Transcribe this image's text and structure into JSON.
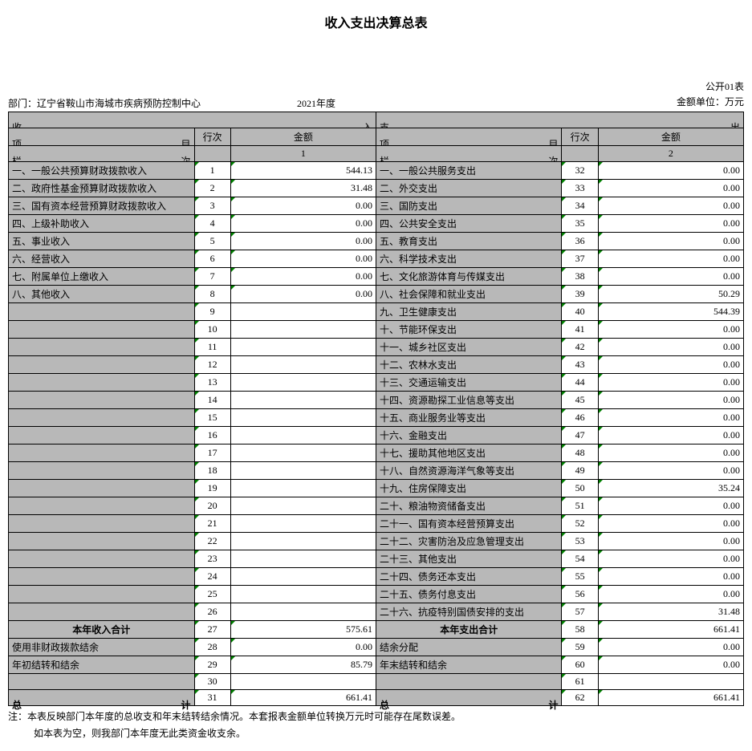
{
  "title": "收入支出决算总表",
  "header": {
    "dept_label": "部门：",
    "dept_name": "辽宁省鞍山市海城市疾病预防控制中心",
    "year": "2021年度",
    "table_no": "公开01表",
    "unit": "金额单位：万元"
  },
  "section_headers": {
    "income_left": "收",
    "income_right": "入",
    "expense_left": "支",
    "expense_right": "出",
    "item_left": "项",
    "item_right": "目",
    "row_label": "行次",
    "amount_label": "金额",
    "col_left": "栏",
    "col_right": "次",
    "col1": "1",
    "col2": "2"
  },
  "income_rows": [
    {
      "label": "一、一般公共预算财政拨款收入",
      "row": "1",
      "amount": "544.13"
    },
    {
      "label": "二、政府性基金预算财政拨款收入",
      "row": "2",
      "amount": "31.48"
    },
    {
      "label": "三、国有资本经营预算财政拨款收入",
      "row": "3",
      "amount": "0.00"
    },
    {
      "label": "四、上级补助收入",
      "row": "4",
      "amount": "0.00"
    },
    {
      "label": "五、事业收入",
      "row": "5",
      "amount": "0.00"
    },
    {
      "label": "六、经营收入",
      "row": "6",
      "amount": "0.00"
    },
    {
      "label": "七、附属单位上缴收入",
      "row": "7",
      "amount": "0.00"
    },
    {
      "label": "八、其他收入",
      "row": "8",
      "amount": "0.00"
    },
    {
      "label": "",
      "row": "9",
      "amount": ""
    },
    {
      "label": "",
      "row": "10",
      "amount": ""
    },
    {
      "label": "",
      "row": "11",
      "amount": ""
    },
    {
      "label": "",
      "row": "12",
      "amount": ""
    },
    {
      "label": "",
      "row": "13",
      "amount": ""
    },
    {
      "label": "",
      "row": "14",
      "amount": ""
    },
    {
      "label": "",
      "row": "15",
      "amount": ""
    },
    {
      "label": "",
      "row": "16",
      "amount": ""
    },
    {
      "label": "",
      "row": "17",
      "amount": ""
    },
    {
      "label": "",
      "row": "18",
      "amount": ""
    },
    {
      "label": "",
      "row": "19",
      "amount": ""
    },
    {
      "label": "",
      "row": "20",
      "amount": ""
    },
    {
      "label": "",
      "row": "21",
      "amount": ""
    },
    {
      "label": "",
      "row": "22",
      "amount": ""
    },
    {
      "label": "",
      "row": "23",
      "amount": ""
    },
    {
      "label": "",
      "row": "24",
      "amount": ""
    },
    {
      "label": "",
      "row": "25",
      "amount": ""
    },
    {
      "label": "",
      "row": "26",
      "amount": ""
    }
  ],
  "expense_rows": [
    {
      "label": "一、一般公共服务支出",
      "row": "32",
      "amount": "0.00"
    },
    {
      "label": "二、外交支出",
      "row": "33",
      "amount": "0.00"
    },
    {
      "label": "三、国防支出",
      "row": "34",
      "amount": "0.00"
    },
    {
      "label": "四、公共安全支出",
      "row": "35",
      "amount": "0.00"
    },
    {
      "label": "五、教育支出",
      "row": "36",
      "amount": "0.00"
    },
    {
      "label": "六、科学技术支出",
      "row": "37",
      "amount": "0.00"
    },
    {
      "label": "七、文化旅游体育与传媒支出",
      "row": "38",
      "amount": "0.00"
    },
    {
      "label": "八、社会保障和就业支出",
      "row": "39",
      "amount": "50.29"
    },
    {
      "label": "九、卫生健康支出",
      "row": "40",
      "amount": "544.39"
    },
    {
      "label": "十、节能环保支出",
      "row": "41",
      "amount": "0.00"
    },
    {
      "label": "十一、城乡社区支出",
      "row": "42",
      "amount": "0.00"
    },
    {
      "label": "十二、农林水支出",
      "row": "43",
      "amount": "0.00"
    },
    {
      "label": "十三、交通运输支出",
      "row": "44",
      "amount": "0.00"
    },
    {
      "label": "十四、资源勘探工业信息等支出",
      "row": "45",
      "amount": "0.00"
    },
    {
      "label": "十五、商业服务业等支出",
      "row": "46",
      "amount": "0.00"
    },
    {
      "label": "十六、金融支出",
      "row": "47",
      "amount": "0.00"
    },
    {
      "label": "十七、援助其他地区支出",
      "row": "48",
      "amount": "0.00"
    },
    {
      "label": "十八、自然资源海洋气象等支出",
      "row": "49",
      "amount": "0.00"
    },
    {
      "label": "十九、住房保障支出",
      "row": "50",
      "amount": "35.24"
    },
    {
      "label": "二十、粮油物资储备支出",
      "row": "51",
      "amount": "0.00"
    },
    {
      "label": "二十一、国有资本经营预算支出",
      "row": "52",
      "amount": "0.00"
    },
    {
      "label": "二十二、灾害防治及应急管理支出",
      "row": "53",
      "amount": "0.00"
    },
    {
      "label": "二十三、其他支出",
      "row": "54",
      "amount": "0.00"
    },
    {
      "label": "二十四、债务还本支出",
      "row": "55",
      "amount": "0.00"
    },
    {
      "label": "二十五、债务付息支出",
      "row": "56",
      "amount": "0.00"
    },
    {
      "label": "二十六、抗疫特别国债安排的支出",
      "row": "57",
      "amount": "31.48"
    }
  ],
  "subtotal_row": {
    "income_label": "本年收入合计",
    "income_row": "27",
    "income_amount": "575.61",
    "expense_label": "本年支出合计",
    "expense_row": "58",
    "expense_amount": "661.41"
  },
  "extra_rows": [
    {
      "income_label": "使用非财政拨款结余",
      "income_row": "28",
      "income_amount": "0.00",
      "expense_label": "结余分配",
      "expense_row": "59",
      "expense_amount": "0.00"
    },
    {
      "income_label": "年初结转和结余",
      "income_row": "29",
      "income_amount": "85.79",
      "expense_label": "年末结转和结余",
      "expense_row": "60",
      "expense_amount": "0.00"
    },
    {
      "income_label": "",
      "income_row": "30",
      "income_amount": "",
      "expense_label": "",
      "expense_row": "61",
      "expense_amount": ""
    }
  ],
  "total_row": {
    "label_left": "总",
    "label_right": "计",
    "income_row": "31",
    "income_amount": "661.41",
    "expense_row": "62",
    "expense_amount": "661.41"
  },
  "notes": {
    "line1": "注：本表反映部门本年度的总收支和年末结转结余情况。本套报表金额单位转换万元时可能存在尾数误差。",
    "line2": "如本表为空，则我部门本年度无此类资金收支余。"
  },
  "colors": {
    "header_bg": "#b8b8b8",
    "cell_bg": "#ffffff",
    "border": "#000000",
    "green_mark": "#008000"
  }
}
